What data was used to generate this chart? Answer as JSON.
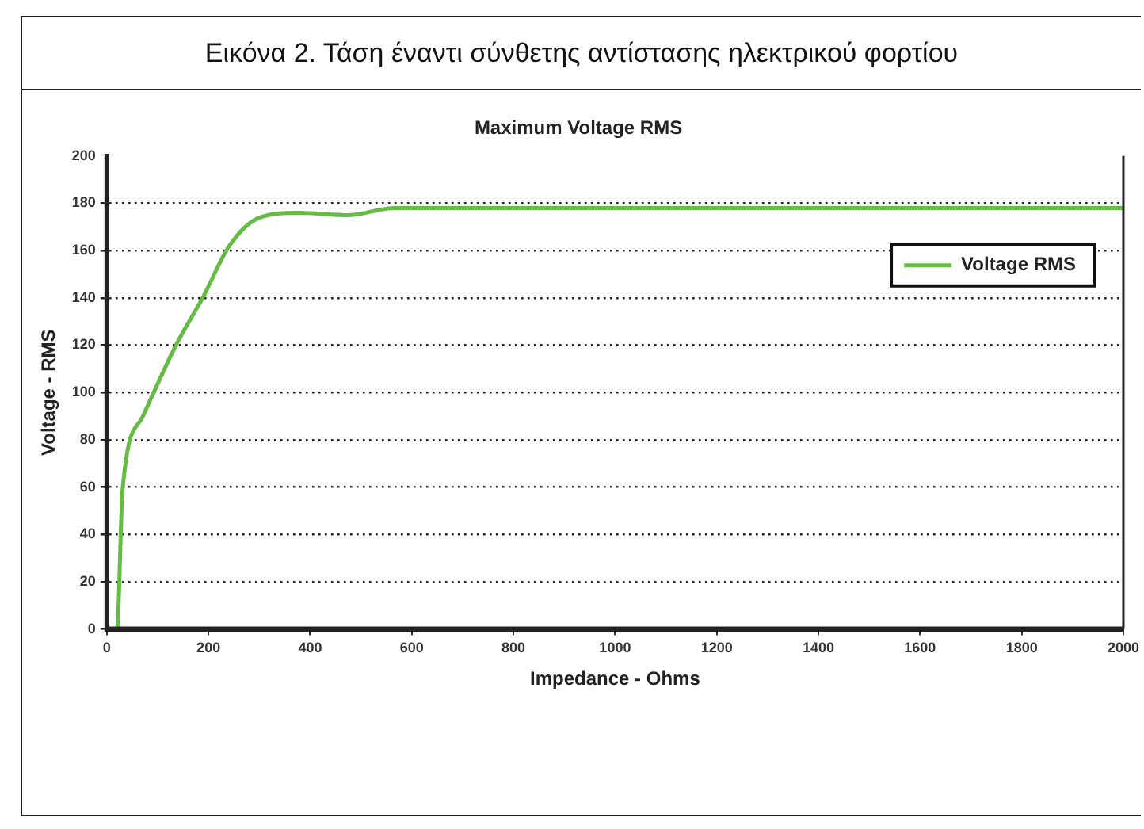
{
  "chart_data": {
    "type": "line",
    "title": "Εικόνα 2. Τάση έναντι σύνθετης αντίστασης ηλεκτρικού φορτίου",
    "subtitle": "Maximum Voltage RMS",
    "xlabel": "Impedance - Ohms",
    "ylabel": "Voltage - RMS",
    "x": [
      0,
      20,
      31,
      70,
      136,
      191,
      241,
      301,
      377,
      476,
      565,
      800,
      1200,
      1600,
      2000
    ],
    "series": [
      {
        "name": "Voltage RMS",
        "color": "#66bb44",
        "values": [
          0,
          0,
          59,
          89.5,
          120,
          141,
          162,
          174,
          176,
          175,
          178,
          178,
          178,
          178,
          178
        ]
      }
    ],
    "xlim": [
      0,
      2000
    ],
    "xticks": [
      0,
      200,
      400,
      600,
      800,
      1000,
      1200,
      1400,
      1600,
      1800,
      2000
    ],
    "ylim": [
      0,
      200
    ],
    "yticks": [
      0,
      20,
      40,
      60,
      80,
      100,
      120,
      140,
      160,
      180,
      200
    ],
    "grid": "y",
    "legend": "top right",
    "marker": "none",
    "line_style": "solid"
  }
}
